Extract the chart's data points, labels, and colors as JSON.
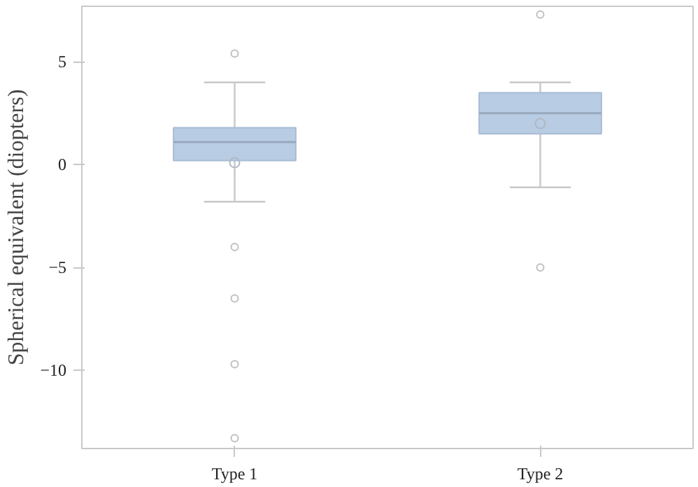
{
  "chart_data": {
    "type": "box",
    "ylabel": "Spherical equivalent (diopters)",
    "categories": [
      "Type 1",
      "Type 2"
    ],
    "boxes": [
      {
        "low": -1.8,
        "q1": 0.2,
        "median": 1.1,
        "q3": 1.8,
        "high": 4.0,
        "mean": 0.1,
        "outliers": [
          5.4,
          -4.0,
          -6.5,
          -9.7,
          -13.3
        ]
      },
      {
        "low": -1.1,
        "q1": 1.5,
        "median": 2.5,
        "q3": 3.5,
        "high": 4.0,
        "mean": 2.0,
        "outliers": [
          7.3,
          -5.0
        ]
      }
    ],
    "color": "#b8cce4",
    "ylim": [
      -13.8,
      7.7
    ],
    "yticks": [
      -10,
      -5,
      0,
      5
    ],
    "grid": false
  }
}
